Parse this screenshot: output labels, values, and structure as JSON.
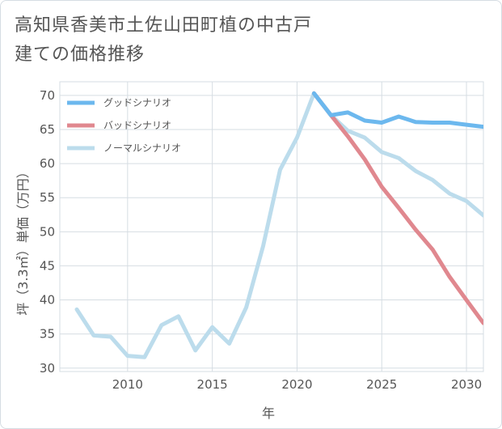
{
  "title": "高知県香美市土佐山田町植の中古戸建ての価格推移",
  "chart_data": {
    "type": "line",
    "xlabel": "年",
    "ylabel": "坪（3.3㎡）単価（万円）",
    "xlim": [
      2006,
      2031
    ],
    "ylim": [
      29.5,
      72
    ],
    "xticks": [
      2010,
      2015,
      2020,
      2025,
      2030
    ],
    "yticks": [
      30,
      35,
      40,
      45,
      50,
      55,
      60,
      65,
      70
    ],
    "grid": true,
    "legend_position": "top-left",
    "series": [
      {
        "name": "グッドシナリオ",
        "color": "#6cb8ee",
        "x": [
          2021,
          2022,
          2023,
          2024,
          2025,
          2026,
          2027,
          2028,
          2029,
          2030,
          2031
        ],
        "values": [
          70.3,
          67.1,
          67.5,
          66.3,
          66.0,
          66.9,
          66.1,
          66.0,
          66.0,
          65.7,
          65.4
        ]
      },
      {
        "name": "バッドシナリオ",
        "color": "#e0888f",
        "x": [
          2021,
          2022,
          2023,
          2024,
          2025,
          2026,
          2027,
          2028,
          2029,
          2030,
          2031
        ],
        "values": [
          70.3,
          67.1,
          64.0,
          60.6,
          56.6,
          53.5,
          50.3,
          47.4,
          43.4,
          40.0,
          36.6
        ]
      },
      {
        "name": "ノーマルシナリオ",
        "color": "#bcdcec",
        "x": [
          2007,
          2008,
          2009,
          2010,
          2011,
          2012,
          2013,
          2014,
          2015,
          2016,
          2017,
          2018,
          2019,
          2020,
          2021,
          2022,
          2023,
          2024,
          2025,
          2026,
          2027,
          2028,
          2029,
          2030,
          2031
        ],
        "values": [
          38.6,
          34.8,
          34.6,
          31.8,
          31.6,
          36.3,
          37.6,
          32.6,
          36.0,
          33.6,
          38.9,
          47.9,
          59.1,
          63.8,
          70.3,
          67.1,
          64.8,
          63.8,
          61.7,
          60.8,
          58.9,
          57.6,
          55.6,
          54.5,
          52.4
        ]
      }
    ]
  }
}
